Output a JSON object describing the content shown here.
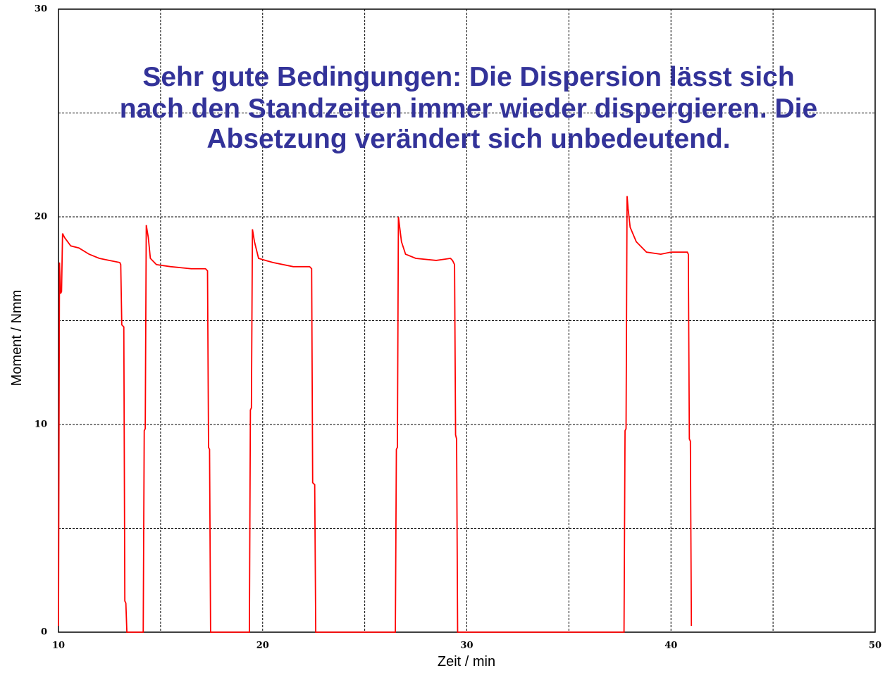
{
  "chart_data": {
    "type": "line",
    "title": [
      "Sehr gute Bedingungen: Die Dispersion lässt sich",
      "nach den Standzeiten immer wieder dispergieren. Die",
      "Absetzung verändert sich unbedeutend."
    ],
    "title_color": "#333399",
    "xlabel": "Zeit / min",
    "ylabel": "Moment / Nmm",
    "xlim": [
      10,
      50
    ],
    "ylim": [
      0,
      30
    ],
    "xticks": [
      10,
      20,
      30,
      40,
      50
    ],
    "yticks": [
      0,
      10,
      20,
      30
    ],
    "xminor": [
      15,
      25,
      35,
      45
    ],
    "yminor": [
      5,
      15,
      25
    ],
    "grid": true,
    "x": [
      10.0,
      10.05,
      10.1,
      10.15,
      10.2,
      10.3,
      10.6,
      11.0,
      11.5,
      12.0,
      12.5,
      13.0,
      13.05,
      13.1,
      13.2,
      13.25,
      13.3,
      13.35,
      14.15,
      14.2,
      14.25,
      14.3,
      14.4,
      14.5,
      14.8,
      15.5,
      16.5,
      17.2,
      17.3,
      17.35,
      17.4,
      17.45,
      19.35,
      19.4,
      19.45,
      19.5,
      19.6,
      19.8,
      20.5,
      21.5,
      22.0,
      22.3,
      22.4,
      22.45,
      22.55,
      22.6,
      26.5,
      26.55,
      26.6,
      26.65,
      26.8,
      27.0,
      27.5,
      28.5,
      29.2,
      29.3,
      29.4,
      29.45,
      29.5,
      29.55,
      37.7,
      37.75,
      37.8,
      37.85,
      37.9,
      38.0,
      38.3,
      38.8,
      39.5,
      40.0,
      40.8,
      40.85,
      40.9,
      40.95,
      41.0
    ],
    "series": [
      {
        "color": "#ff0000",
        "values": [
          0.3,
          17.8,
          16.3,
          16.4,
          19.2,
          19.0,
          18.6,
          18.5,
          18.2,
          18.0,
          17.9,
          17.8,
          17.7,
          14.8,
          14.7,
          1.5,
          1.4,
          0,
          0,
          9.7,
          9.8,
          19.6,
          19.0,
          18.0,
          17.7,
          17.6,
          17.5,
          17.5,
          17.4,
          8.9,
          8.8,
          0,
          0,
          10.7,
          10.8,
          19.4,
          18.8,
          18.0,
          17.8,
          17.6,
          17.6,
          17.6,
          17.5,
          7.2,
          7.1,
          0,
          0,
          8.8,
          8.9,
          20.0,
          18.8,
          18.2,
          18.0,
          17.9,
          18.0,
          17.9,
          17.7,
          9.5,
          9.3,
          0,
          0,
          9.7,
          9.8,
          21.0,
          20.4,
          19.5,
          18.8,
          18.3,
          18.2,
          18.3,
          18.3,
          18.2,
          9.3,
          9.2,
          0.3
        ]
      }
    ]
  }
}
